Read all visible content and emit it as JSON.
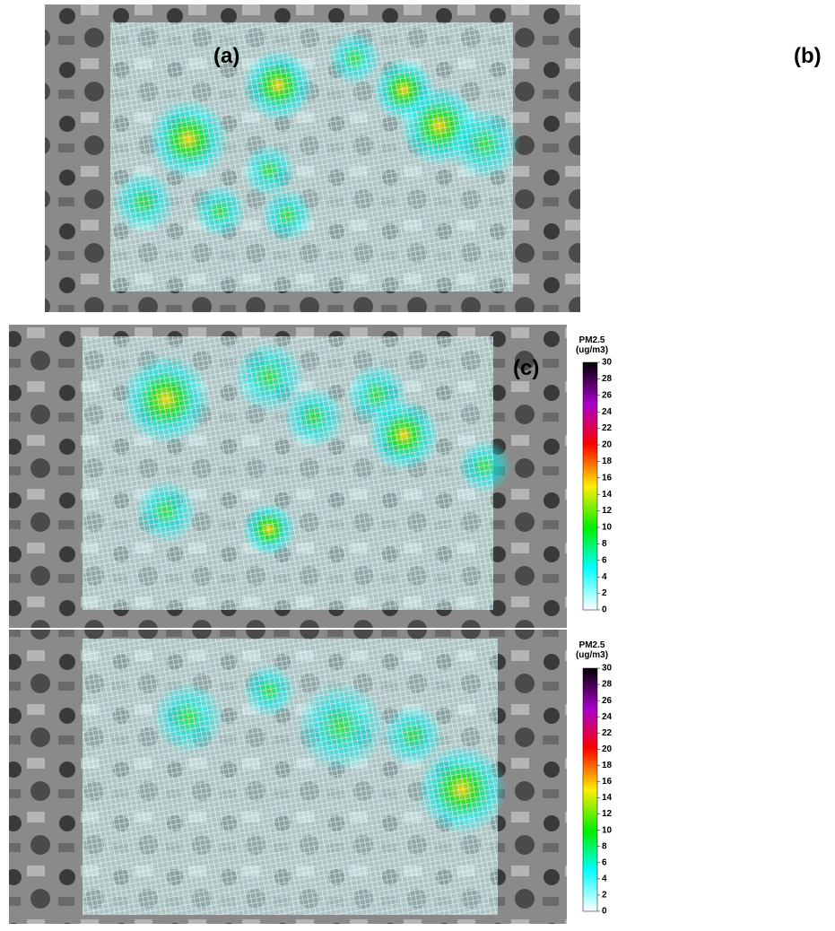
{
  "panels": [
    {
      "label": "(a)"
    },
    {
      "label": "(b)"
    },
    {
      "label": "(c)"
    }
  ],
  "colorbars": [
    {
      "title": "PM2.5",
      "unit": "(ug/m3)",
      "ticks": [
        0,
        2,
        4,
        6,
        8,
        10,
        12,
        14,
        16,
        18,
        20,
        22,
        24,
        26,
        28,
        30
      ]
    },
    {
      "title": "PM2.5",
      "unit": "(ug/m3)",
      "ticks": [
        0,
        2,
        4,
        6,
        8,
        10,
        12,
        14,
        16,
        18,
        20,
        22,
        24,
        26,
        28,
        30
      ]
    }
  ]
}
